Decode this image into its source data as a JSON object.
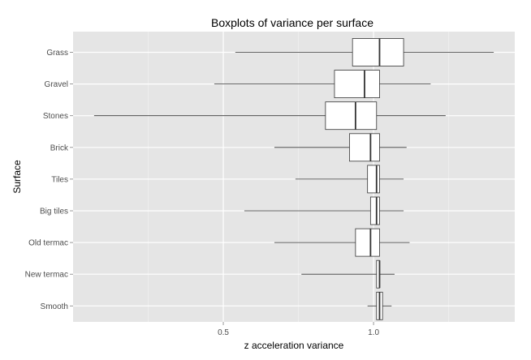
{
  "chart_data": {
    "type": "boxplot",
    "orientation": "horizontal",
    "title": "Boxplots of variance per surface",
    "xlabel": "z acceleration variance",
    "ylabel": "Surface",
    "xlim": [
      0.0,
      1.47
    ],
    "x_ticks": [
      {
        "value": 0.5,
        "label": "0.5"
      },
      {
        "value": 1.0,
        "label": "1.0"
      }
    ],
    "x_minor_ticks": [
      0.25,
      0.75,
      1.25
    ],
    "grid": true,
    "colors": {
      "panel_background": "#e5e5e5",
      "gridline": "#ffffff",
      "box_fill": "#ffffff",
      "box_stroke": "#333333",
      "whisker": "#333333"
    },
    "categories": [
      "Grass",
      "Gravel",
      "Stones",
      "Brick",
      "Tiles",
      "Big tiles",
      "Old termac",
      "New termac",
      "Smooth"
    ],
    "boxes": [
      {
        "category": "Grass",
        "min": 0.54,
        "q1": 0.93,
        "median": 1.02,
        "q3": 1.1,
        "max": 1.4
      },
      {
        "category": "Gravel",
        "min": 0.47,
        "q1": 0.87,
        "median": 0.97,
        "q3": 1.02,
        "max": 1.19
      },
      {
        "category": "Stones",
        "min": 0.07,
        "q1": 0.84,
        "median": 0.94,
        "q3": 1.01,
        "max": 1.24
      },
      {
        "category": "Brick",
        "min": 0.67,
        "q1": 0.92,
        "median": 0.99,
        "q3": 1.02,
        "max": 1.11
      },
      {
        "category": "Tiles",
        "min": 0.74,
        "q1": 0.98,
        "median": 1.01,
        "q3": 1.02,
        "max": 1.1
      },
      {
        "category": "Big tiles",
        "min": 0.57,
        "q1": 0.99,
        "median": 1.01,
        "q3": 1.02,
        "max": 1.1
      },
      {
        "category": "Old termac",
        "min": 0.67,
        "q1": 0.94,
        "median": 0.99,
        "q3": 1.02,
        "max": 1.12
      },
      {
        "category": "New termac",
        "min": 0.76,
        "q1": 1.01,
        "median": 1.02,
        "q3": 1.02,
        "max": 1.07
      },
      {
        "category": "Smooth",
        "min": 0.98,
        "q1": 1.01,
        "median": 1.02,
        "q3": 1.03,
        "max": 1.06
      }
    ]
  }
}
